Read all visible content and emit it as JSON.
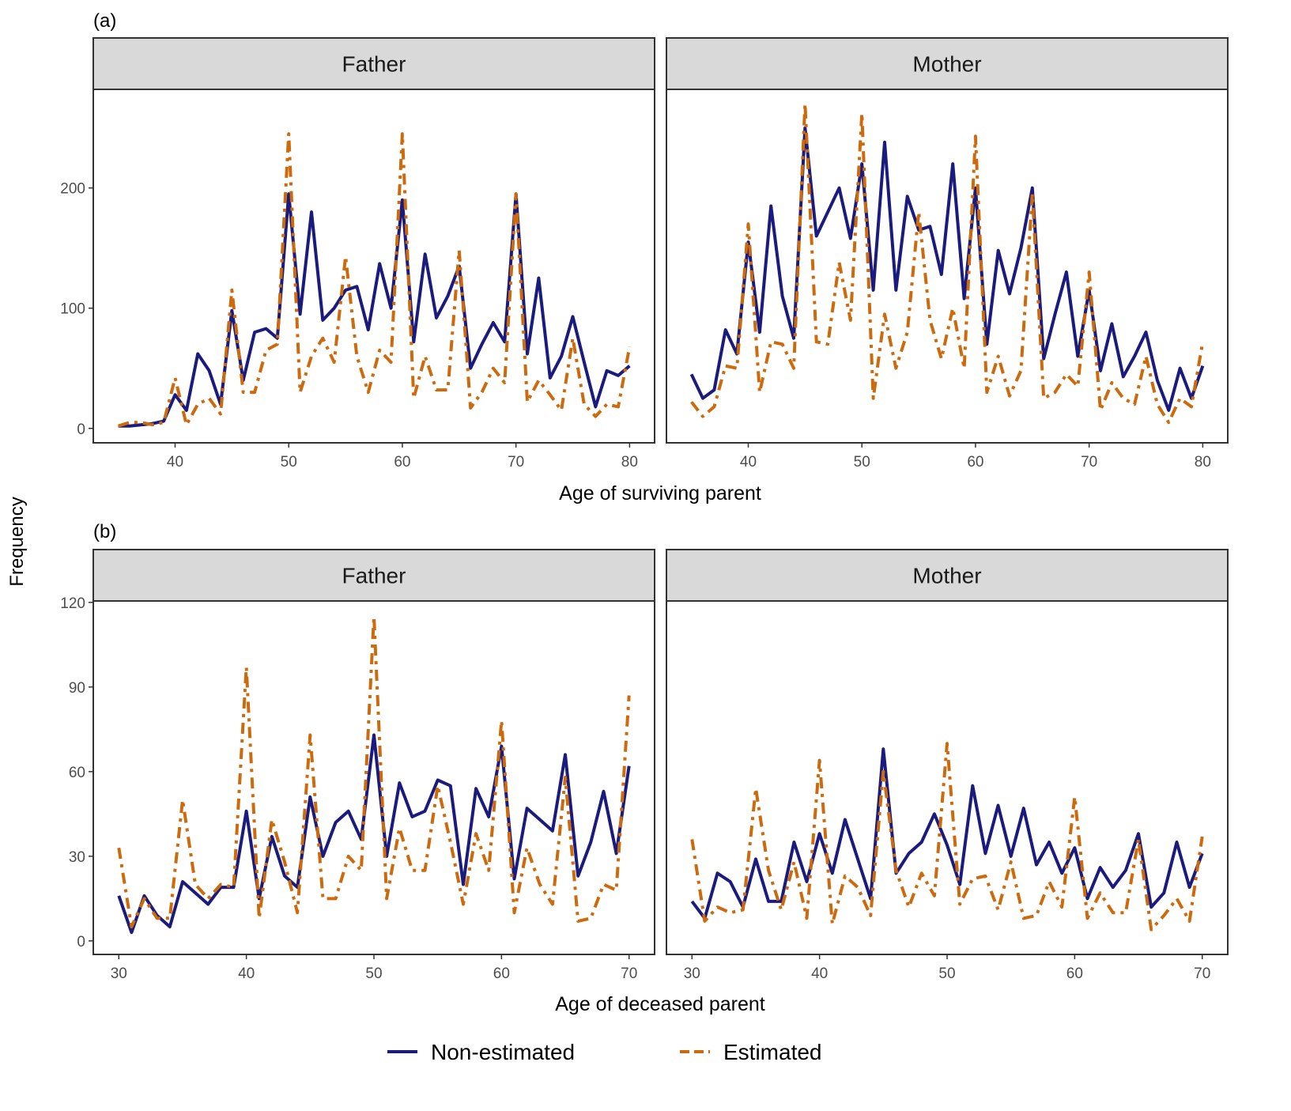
{
  "chart_data": [
    {
      "type": "line",
      "panel_label": "(a)",
      "xlabel": "Age of surviving parent",
      "ylabel": "Frequency",
      "xlim": [
        32.8,
        82.2
      ],
      "ylim": [
        -12,
        282
      ],
      "xticks": [
        40,
        50,
        60,
        70,
        80
      ],
      "yticks": [
        0,
        100,
        200
      ],
      "grid": false,
      "facets": [
        {
          "strip": "Father",
          "x": [
            35,
            36,
            37,
            38,
            39,
            40,
            41,
            42,
            43,
            44,
            45,
            46,
            47,
            48,
            49,
            50,
            51,
            52,
            53,
            54,
            55,
            56,
            57,
            58,
            59,
            60,
            61,
            62,
            63,
            64,
            65,
            66,
            67,
            68,
            69,
            70,
            71,
            72,
            73,
            74,
            75,
            76,
            77,
            78,
            79,
            80
          ],
          "series": [
            {
              "name": "Non-estimated",
              "values": [
                2,
                2,
                3,
                4,
                6,
                28,
                15,
                62,
                48,
                20,
                98,
                40,
                80,
                83,
                75,
                195,
                95,
                180,
                90,
                100,
                115,
                118,
                82,
                137,
                100,
                190,
                72,
                145,
                92,
                110,
                135,
                50,
                70,
                88,
                72,
                195,
                62,
                125,
                42,
                60,
                93,
                55,
                18,
                48,
                44,
                52
              ]
            },
            {
              "name": "Estimated",
              "values": [
                2,
                5,
                5,
                3,
                5,
                42,
                3,
                20,
                25,
                12,
                115,
                30,
                30,
                65,
                70,
                245,
                30,
                60,
                75,
                55,
                143,
                60,
                30,
                65,
                55,
                245,
                25,
                60,
                32,
                32,
                148,
                17,
                30,
                50,
                38,
                195,
                22,
                40,
                28,
                15,
                75,
                20,
                10,
                20,
                18,
                68
              ]
            }
          ]
        },
        {
          "strip": "Mother",
          "x": [
            35,
            36,
            37,
            38,
            39,
            40,
            41,
            42,
            43,
            44,
            45,
            46,
            47,
            48,
            49,
            50,
            51,
            52,
            53,
            54,
            55,
            56,
            57,
            58,
            59,
            60,
            61,
            62,
            63,
            64,
            65,
            66,
            67,
            68,
            69,
            70,
            71,
            72,
            73,
            74,
            75,
            76,
            77,
            78,
            79,
            80
          ],
          "series": [
            {
              "name": "Non-estimated",
              "values": [
                45,
                25,
                32,
                82,
                62,
                155,
                80,
                185,
                110,
                75,
                250,
                160,
                180,
                200,
                158,
                220,
                115,
                238,
                115,
                193,
                165,
                168,
                128,
                220,
                108,
                200,
                70,
                148,
                112,
                150,
                200,
                58,
                95,
                130,
                60,
                115,
                48,
                87,
                43,
                60,
                80,
                40,
                15,
                50,
                25,
                52
              ]
            },
            {
              "name": "Estimated",
              "values": [
                22,
                10,
                18,
                52,
                50,
                170,
                30,
                72,
                70,
                50,
                270,
                72,
                70,
                138,
                90,
                262,
                25,
                95,
                50,
                80,
                180,
                90,
                58,
                100,
                50,
                243,
                30,
                60,
                27,
                48,
                195,
                25,
                30,
                45,
                35,
                130,
                15,
                38,
                25,
                20,
                60,
                20,
                5,
                25,
                18,
                72
              ]
            }
          ]
        }
      ]
    },
    {
      "type": "line",
      "panel_label": "(b)",
      "xlabel": "Age of deceased parent",
      "ylabel": "Frequency",
      "xlim": [
        28.0,
        72.0
      ],
      "ylim": [
        -4.8,
        120.5
      ],
      "xticks": [
        30,
        40,
        50,
        60,
        70
      ],
      "yticks": [
        0,
        30,
        60,
        90,
        120
      ],
      "grid": false,
      "facets": [
        {
          "strip": "Father",
          "x": [
            30,
            31,
            32,
            33,
            34,
            35,
            36,
            37,
            38,
            39,
            40,
            41,
            42,
            43,
            44,
            45,
            46,
            47,
            48,
            49,
            50,
            51,
            52,
            53,
            54,
            55,
            56,
            57,
            58,
            59,
            60,
            61,
            62,
            63,
            64,
            65,
            66,
            67,
            68,
            69,
            70
          ],
          "series": [
            {
              "name": "Non-estimated",
              "values": [
                16,
                3,
                16,
                9,
                5,
                21,
                17,
                13,
                19,
                19,
                46,
                15,
                37,
                23,
                19,
                51,
                30,
                42,
                46,
                36,
                73,
                30,
                56,
                44,
                46,
                57,
                55,
                20,
                54,
                44,
                69,
                22,
                47,
                43,
                39,
                66,
                23,
                35,
                53,
                31,
                62
              ]
            },
            {
              "name": "Estimated",
              "values": [
                33,
                5,
                15,
                8,
                8,
                50,
                20,
                15,
                20,
                19,
                97,
                8,
                43,
                28,
                10,
                73,
                15,
                15,
                30,
                25,
                115,
                15,
                40,
                25,
                25,
                55,
                35,
                13,
                38,
                25,
                78,
                10,
                33,
                20,
                13,
                58,
                7,
                8,
                20,
                18,
                87
              ]
            }
          ]
        },
        {
          "strip": "Mother",
          "x": [
            30,
            31,
            32,
            33,
            34,
            35,
            36,
            37,
            38,
            39,
            40,
            41,
            42,
            43,
            44,
            45,
            46,
            47,
            48,
            49,
            50,
            51,
            52,
            53,
            54,
            55,
            56,
            57,
            58,
            59,
            60,
            61,
            62,
            63,
            64,
            65,
            66,
            67,
            68,
            69,
            70
          ],
          "series": [
            {
              "name": "Non-estimated",
              "values": [
                14,
                8,
                24,
                21,
                12,
                29,
                14,
                14,
                35,
                21,
                38,
                24,
                43,
                29,
                15,
                68,
                24,
                31,
                35,
                45,
                34,
                20,
                55,
                31,
                48,
                30,
                47,
                27,
                35,
                24,
                33,
                15,
                26,
                19,
                25,
                38,
                12,
                17,
                35,
                19,
                31
              ]
            },
            {
              "name": "Estimated",
              "values": [
                36,
                7,
                12,
                10,
                11,
                54,
                25,
                11,
                28,
                8,
                64,
                6,
                23,
                19,
                9,
                60,
                25,
                12,
                24,
                16,
                70,
                13,
                22,
                23,
                11,
                28,
                8,
                9,
                21,
                12,
                51,
                8,
                17,
                10,
                10,
                36,
                4,
                9,
                15,
                7,
                37
              ]
            }
          ]
        }
      ]
    }
  ],
  "legend": {
    "placement": "bottom",
    "items": [
      {
        "label": "Non-estimated",
        "color": "#1b1b7e",
        "style": "solid"
      },
      {
        "label": "Estimated",
        "color": "#cc6a0e",
        "style": "dashed"
      }
    ]
  },
  "colors": {
    "non_estimated": "#1b1b7e",
    "estimated": "#cc6a0e",
    "strip_bg": "#d9d9d9"
  }
}
